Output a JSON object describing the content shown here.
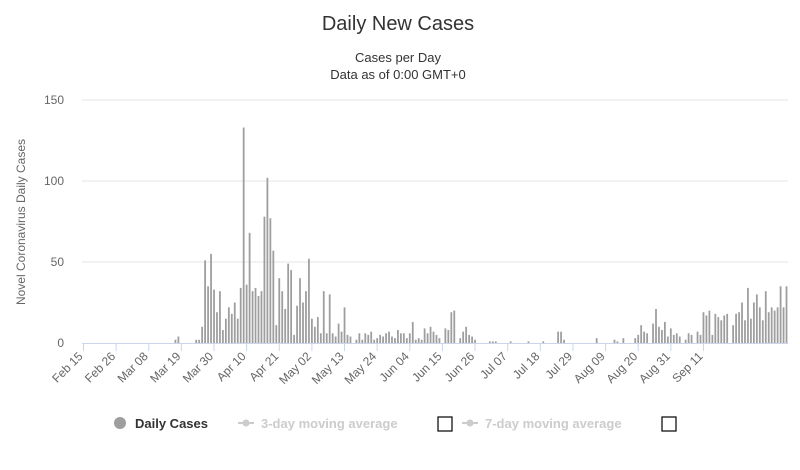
{
  "chart_data": {
    "type": "bar",
    "title": "Daily New Cases",
    "subtitle_lines": [
      "Cases per Day",
      "Data as of 0:00 GMT+0"
    ],
    "ylabel": "Novel Coronavirus Daily Cases",
    "xlabel": "",
    "ylim": [
      0,
      150
    ],
    "yticks": [
      0,
      50,
      100,
      150
    ],
    "grid": true,
    "legend_position": "bottom",
    "x_start_label": "Feb 15",
    "xtick_labels": [
      "Feb 15",
      "Feb 26",
      "Mar 08",
      "Mar 19",
      "Mar 30",
      "Apr 10",
      "Apr 21",
      "May 02",
      "May 13",
      "May 24",
      "Jun 04",
      "Jun 15",
      "Jun 26",
      "Jul 07",
      "Jul 18",
      "Jul 29",
      "Aug 09",
      "Aug 20",
      "Aug 31",
      "Sep 11"
    ],
    "xtick_interval_days": 11,
    "colors": {
      "bars": "#9e9e9e",
      "grid": "#e6e6e6",
      "axis": "#ccd6eb",
      "legend_inactive": "#cccccc",
      "legend_active": "#333333"
    },
    "series": [
      {
        "name": "Daily Cases",
        "values": [
          0,
          0,
          0,
          0,
          0,
          0,
          0,
          0,
          0,
          0,
          0,
          0,
          0,
          0,
          0,
          0,
          0,
          0,
          0,
          0,
          0,
          0,
          0,
          0,
          0,
          0,
          0,
          0,
          0,
          0,
          0,
          2,
          4,
          0,
          0,
          0,
          0,
          0,
          2,
          2,
          10,
          51,
          35,
          55,
          33,
          19,
          32,
          8,
          15,
          22,
          18,
          25,
          15,
          34,
          133,
          36,
          68,
          32,
          34,
          29,
          32,
          78,
          102,
          77,
          57,
          11,
          40,
          32,
          21,
          49,
          45,
          5,
          23,
          40,
          25,
          32,
          52,
          15,
          10,
          16,
          6,
          32,
          6,
          30,
          6,
          4,
          12,
          7,
          22,
          5,
          4,
          0,
          2,
          6,
          2,
          6,
          5,
          7,
          2,
          3,
          5,
          4,
          6,
          7,
          4,
          3,
          8,
          6,
          6,
          3,
          6,
          13,
          2,
          3,
          2,
          9,
          6,
          10,
          7,
          5,
          3,
          0,
          9,
          8,
          19,
          20,
          0,
          3,
          7,
          10,
          5,
          4,
          2,
          0,
          0,
          0,
          0,
          1,
          1,
          1,
          0,
          0,
          0,
          0,
          1,
          0,
          0,
          0,
          0,
          0,
          1,
          0,
          0,
          0,
          0,
          1,
          0,
          0,
          0,
          0,
          7,
          7,
          2,
          0,
          0,
          0,
          0,
          0,
          0,
          0,
          0,
          0,
          0,
          3,
          0,
          0,
          0,
          0,
          0,
          2,
          1,
          0,
          3,
          0,
          0,
          0,
          3,
          5,
          11,
          7,
          6,
          0,
          12,
          21,
          10,
          8,
          13,
          4,
          9,
          5,
          6,
          4,
          0,
          2,
          6,
          5,
          0,
          7,
          5,
          19,
          17,
          20,
          5,
          18,
          16,
          14,
          17,
          18,
          0,
          11,
          18,
          19,
          25,
          14,
          34,
          15,
          25,
          30,
          22,
          14,
          32,
          19,
          22,
          20,
          22,
          35,
          22,
          35
        ]
      },
      {
        "name": "3-day moving average",
        "values": []
      },
      {
        "name": "7-day moving average",
        "values": []
      }
    ]
  },
  "legend": [
    {
      "label": "Daily Cases",
      "active": true,
      "checkbox": false
    },
    {
      "label": "3-day moving average",
      "active": false,
      "checkbox": true
    },
    {
      "label": "7-day moving average",
      "active": false,
      "checkbox": true
    }
  ]
}
